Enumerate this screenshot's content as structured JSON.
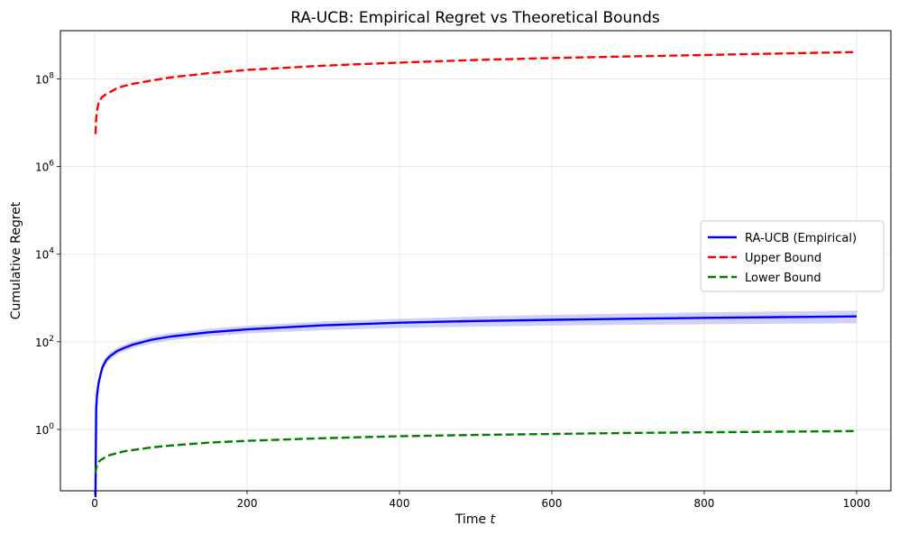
{
  "chart_data": {
    "type": "line",
    "title": "RA-UCB: Empirical Regret vs Theoretical Bounds",
    "xlabel": "Time",
    "xlabel_var": "t",
    "ylabel": "Cumulative Regret",
    "xlim": [
      -45,
      1045
    ],
    "ylim_log10": [
      -1.4,
      9.1
    ],
    "y_scale": "log",
    "x_ticks": [
      0,
      200,
      400,
      600,
      800,
      1000
    ],
    "y_ticks": [
      {
        "base": "10",
        "exp": "0",
        "value_log10": 0
      },
      {
        "base": "10",
        "exp": "2",
        "value_log10": 2
      },
      {
        "base": "10",
        "exp": "4",
        "value_log10": 4
      },
      {
        "base": "10",
        "exp": "6",
        "value_log10": 6
      },
      {
        "base": "10",
        "exp": "8",
        "value_log10": 8
      }
    ],
    "grid": true,
    "legend_position": "center-right",
    "series": [
      {
        "name": "RA-UCB (Empirical)",
        "color": "#0000ff",
        "style": "solid",
        "band_color": "#aaaaf5",
        "x": [
          1,
          2,
          3,
          5,
          8,
          10,
          15,
          20,
          30,
          40,
          50,
          75,
          100,
          150,
          200,
          300,
          400,
          500,
          600,
          700,
          800,
          900,
          1000
        ],
        "y": [
          0.03,
          3,
          6,
          11,
          19,
          26,
          38,
          47,
          62,
          74,
          86,
          112,
          132,
          165,
          192,
          238,
          272,
          298,
          318,
          336,
          352,
          366,
          380
        ],
        "y_low": [
          0.02,
          2,
          4.5,
          8.5,
          15,
          21,
          31,
          39,
          52,
          62,
          72,
          92,
          108,
          134,
          155,
          185,
          207,
          222,
          234,
          244,
          252,
          258,
          264
        ],
        "y_high": [
          0.04,
          4,
          7.5,
          14,
          24,
          32,
          46,
          57,
          74,
          88,
          102,
          134,
          158,
          198,
          232,
          292,
          338,
          378,
          412,
          442,
          468,
          492,
          515
        ]
      },
      {
        "name": "Upper Bound",
        "color": "#ff0000",
        "style": "dashed",
        "x": [
          1,
          2,
          3,
          5,
          8,
          10,
          15,
          20,
          30,
          40,
          50,
          75,
          100,
          150,
          200,
          300,
          400,
          500,
          600,
          700,
          800,
          900,
          1000
        ],
        "y": [
          5500000,
          12000000,
          19000000,
          27000000,
          35000000,
          39000000,
          45000000,
          50000000,
          62000000,
          70000000,
          77000000,
          92000000,
          108000000,
          135000000,
          160000000,
          200000000,
          235000000,
          270000000,
          300000000,
          325000000,
          350000000,
          380000000,
          410000000
        ]
      },
      {
        "name": "Lower Bound",
        "color": "#008000",
        "style": "dashed",
        "x": [
          1,
          2,
          3,
          5,
          8,
          10,
          15,
          20,
          30,
          40,
          50,
          75,
          100,
          150,
          200,
          300,
          400,
          500,
          600,
          700,
          800,
          900,
          1000
        ],
        "y": [
          0.1,
          0.13,
          0.15,
          0.18,
          0.2,
          0.21,
          0.24,
          0.26,
          0.29,
          0.32,
          0.34,
          0.39,
          0.43,
          0.5,
          0.55,
          0.63,
          0.7,
          0.75,
          0.79,
          0.83,
          0.86,
          0.89,
          0.92
        ]
      }
    ]
  }
}
